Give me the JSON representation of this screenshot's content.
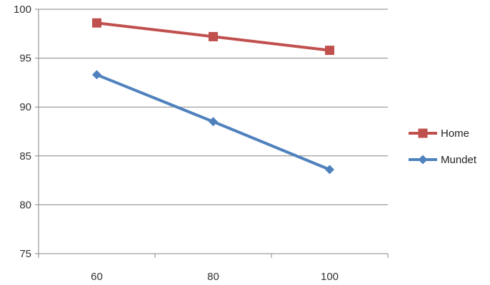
{
  "chart_data": {
    "type": "line",
    "categories": [
      "60",
      "80",
      "100"
    ],
    "x": [
      60,
      80,
      100
    ],
    "ylim": [
      75,
      100
    ],
    "yticks": [
      75,
      80,
      85,
      90,
      95,
      100
    ],
    "grid": true,
    "legend_position": "right",
    "series": [
      {
        "name": "Home",
        "values": [
          98.6,
          97.2,
          95.8
        ],
        "color": "#c0504d",
        "marker": "square"
      },
      {
        "name": "Mundet",
        "values": [
          93.3,
          88.5,
          83.6
        ],
        "color": "#4f81bd",
        "marker": "diamond"
      }
    ]
  }
}
